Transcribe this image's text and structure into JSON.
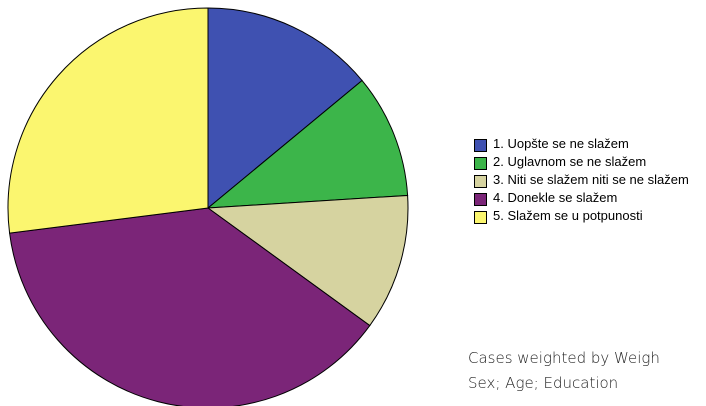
{
  "chart_data": {
    "type": "pie",
    "categories": [
      "1. Uopšte se ne slažem",
      "2. Uglavnom se ne slažem",
      "3. Niti se slažem niti se ne slažem",
      "4. Donekle se slažem",
      "5. Slažem se u potpunosti"
    ],
    "values": [
      14,
      10,
      11,
      38,
      27
    ],
    "colors": [
      "#3f51b1",
      "#3cb54a",
      "#d6d3a0",
      "#7b2578",
      "#fbf66f"
    ],
    "footnote": [
      "Cases weighted by Weigh",
      "Sex; Age; Education"
    ]
  }
}
